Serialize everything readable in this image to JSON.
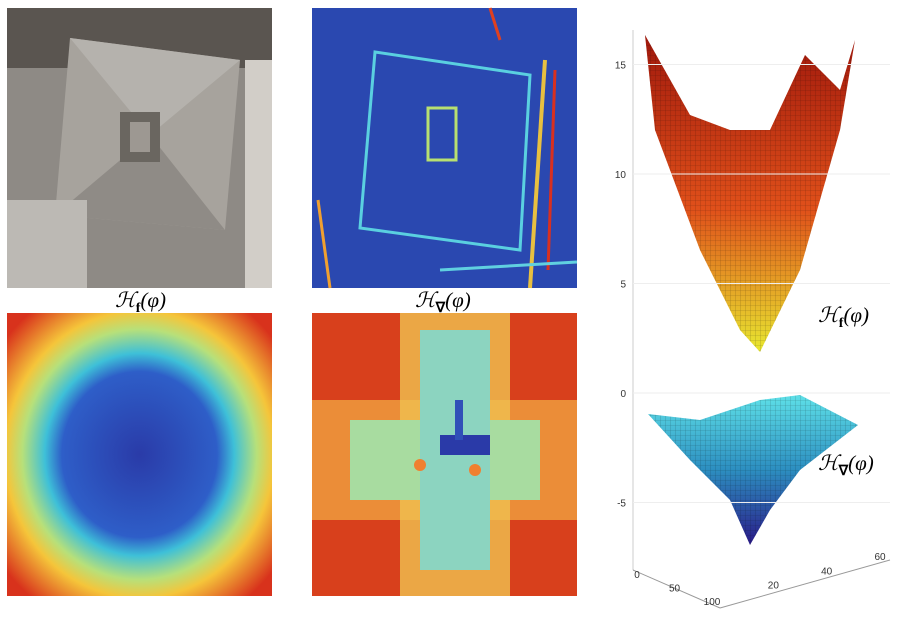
{
  "labels": {
    "top_surface": {
      "base": "ℋ",
      "sub": "f",
      "arg": "(φ)"
    },
    "bottom_surface": {
      "base": "ℋ",
      "sub": "∇",
      "arg": "(φ)"
    }
  },
  "surface_plot": {
    "z_ticks": [
      15,
      10,
      5,
      0,
      -5
    ],
    "x_ticks": [
      0,
      50,
      100
    ],
    "y_ticks": [
      20,
      40,
      60
    ]
  }
}
